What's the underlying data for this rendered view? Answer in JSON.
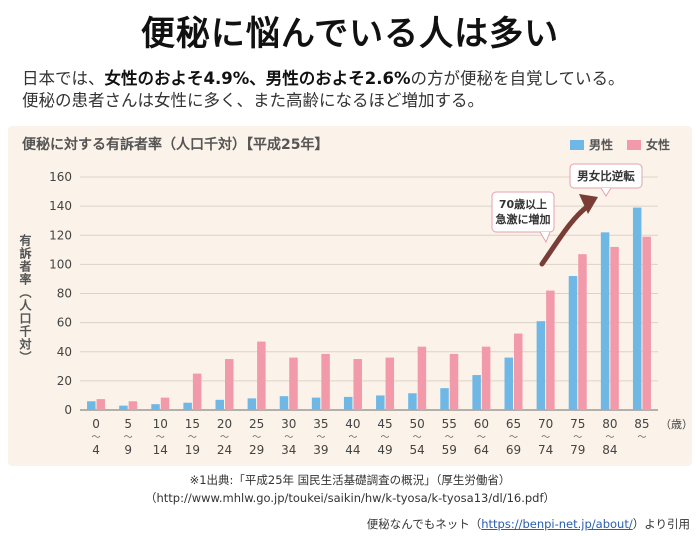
{
  "title": "便秘に悩んでいる人は多い",
  "summary": {
    "line1_pre": "日本では、",
    "line1_female": "女性のおよそ4.9%",
    "line1_sep": "、",
    "line1_male": "男性のおよそ2.6%",
    "line1_post": "の方が便秘を自覚している。",
    "line2": "便秘の患者さんは女性に多く、また高齢になるほど増加する。"
  },
  "colors": {
    "male": "#6fb8e6",
    "female": "#f29aaa",
    "panel": "#fbf3ea",
    "arrow": "#7a3d36"
  },
  "chart_data": {
    "type": "bar",
    "title": "便秘に対する有訴者率（人口千対）【平成25年】",
    "ylabel": "有訴者率（人口千対）",
    "ylim": [
      0,
      160
    ],
    "yticks": [
      "0",
      "20",
      "40",
      "60",
      "80",
      "100",
      "120",
      "140",
      "160"
    ],
    "categories": [
      "0 〜 4",
      "5 〜 9",
      "10 〜 14",
      "15 〜 19",
      "20 〜 24",
      "25 〜 29",
      "30 〜 34",
      "35 〜 39",
      "40 〜 44",
      "45 〜 49",
      "50 〜 54",
      "55 〜 59",
      "60 〜 64",
      "65 〜 69",
      "70 〜 74",
      "75 〜 79",
      "80 〜 84",
      "85 〜"
    ],
    "category_top": [
      "0",
      "5",
      "10",
      "15",
      "20",
      "25",
      "30",
      "35",
      "40",
      "45",
      "50",
      "55",
      "60",
      "65",
      "70",
      "75",
      "80",
      "85"
    ],
    "category_bottom": [
      "4",
      "9",
      "14",
      "19",
      "24",
      "29",
      "34",
      "39",
      "44",
      "49",
      "54",
      "59",
      "64",
      "69",
      "74",
      "79",
      "84",
      ""
    ],
    "unit_label": "（歳）",
    "series": [
      {
        "name": "男性",
        "values": [
          6,
          3,
          4,
          5,
          7,
          8,
          9.5,
          8.5,
          9,
          10,
          11.5,
          15,
          24,
          36,
          61,
          92,
          122,
          139
        ]
      },
      {
        "name": "女性",
        "values": [
          7.5,
          6,
          8.5,
          25,
          35,
          47,
          36,
          38.5,
          35,
          36,
          43.5,
          38.5,
          43.5,
          52.5,
          82,
          107,
          112,
          119
        ]
      }
    ],
    "annotations": {
      "surge": "70歳以上\n急激に増加",
      "reversal": "男女比逆転"
    }
  },
  "source": {
    "line1": "※1出典:「平成25年 国民生活基礎調査の概況」（厚生労働省）",
    "line2": "（http://www.mhlw.go.jp/toukei/saikin/hw/k-tyosa/k-tyosa13/dl/16.pdf）"
  },
  "credit": {
    "pre": "便秘なんでもネット（",
    "link": "https://benpi-net.jp/about/",
    "post": "）より引用"
  }
}
